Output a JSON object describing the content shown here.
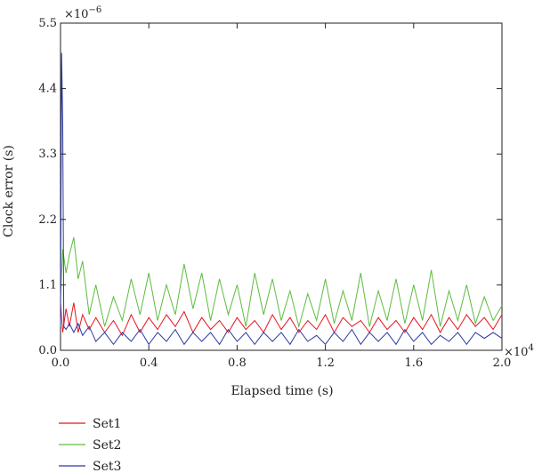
{
  "chart_data": {
    "type": "line",
    "xlabel": "Elapsed time (s)",
    "ylabel": "Clock error (s)",
    "x_multiplier_label": "×10",
    "x_multiplier_exp": "4",
    "y_multiplier_label": "×10",
    "y_multiplier_exp": "−6",
    "xlim": [
      0,
      20000
    ],
    "ylim": [
      0,
      5.5e-06
    ],
    "x_ticks": [
      0,
      4000,
      8000,
      12000,
      16000,
      20000
    ],
    "x_tick_labels": [
      "0.0",
      "0.4",
      "0.8",
      "1.2",
      "1.6",
      "2.0"
    ],
    "y_ticks": [
      0,
      1.1e-06,
      2.2e-06,
      3.3e-06,
      4.4e-06,
      5.5e-06
    ],
    "y_tick_labels": [
      "0.0",
      "1.1",
      "2.2",
      "3.3",
      "4.4",
      "5.5"
    ],
    "grid": false,
    "legend_position": "bottom-left",
    "series": [
      {
        "name": "Set1",
        "color": "#e8141e",
        "x": [
          0,
          100,
          250,
          400,
          600,
          800,
          1000,
          1300,
          1600,
          2000,
          2400,
          2800,
          3200,
          3600,
          4000,
          4400,
          4800,
          5200,
          5600,
          6000,
          6400,
          6800,
          7200,
          7600,
          8000,
          8400,
          8800,
          9200,
          9600,
          10000,
          10400,
          10800,
          11200,
          11600,
          12000,
          12400,
          12800,
          13200,
          13600,
          14000,
          14400,
          14800,
          15200,
          15600,
          16000,
          16400,
          16800,
          17200,
          17600,
          18000,
          18400,
          18800,
          19200,
          19600,
          20000
        ],
        "y": [
          8e-07,
          3e-07,
          7e-07,
          4e-07,
          8e-07,
          3e-07,
          6e-07,
          3.5e-07,
          5.5e-07,
          3e-07,
          5e-07,
          2.5e-07,
          6e-07,
          3e-07,
          5.5e-07,
          3.5e-07,
          6e-07,
          4e-07,
          6.5e-07,
          3e-07,
          5.5e-07,
          3.5e-07,
          5e-07,
          3e-07,
          5.5e-07,
          3.5e-07,
          5e-07,
          3e-07,
          6e-07,
          3.5e-07,
          5.5e-07,
          3e-07,
          5e-07,
          3.5e-07,
          6e-07,
          3e-07,
          5.5e-07,
          4e-07,
          5e-07,
          3e-07,
          5.5e-07,
          3.5e-07,
          5e-07,
          3e-07,
          5.5e-07,
          3.5e-07,
          6e-07,
          3e-07,
          5.5e-07,
          3.5e-07,
          6e-07,
          4e-07,
          5.5e-07,
          3.5e-07,
          6e-07
        ]
      },
      {
        "name": "Set2",
        "color": "#5dbb3f",
        "x": [
          0,
          100,
          250,
          400,
          600,
          800,
          1000,
          1300,
          1600,
          2000,
          2400,
          2800,
          3200,
          3600,
          4000,
          4400,
          4800,
          5200,
          5600,
          6000,
          6400,
          6800,
          7200,
          7600,
          8000,
          8400,
          8800,
          9200,
          9600,
          10000,
          10400,
          10800,
          11200,
          11600,
          12000,
          12400,
          12800,
          13200,
          13600,
          14000,
          14400,
          14800,
          15200,
          15600,
          16000,
          16400,
          16800,
          17200,
          17600,
          18000,
          18400,
          18800,
          19200,
          19600,
          20000
        ],
        "y": [
          9e-07,
          1.7e-06,
          1.3e-06,
          1.6e-06,
          1.9e-06,
          1.2e-06,
          1.5e-06,
          6e-07,
          1.1e-06,
          4e-07,
          9e-07,
          5e-07,
          1.2e-06,
          6e-07,
          1.3e-06,
          5e-07,
          1.1e-06,
          6e-07,
          1.45e-06,
          7e-07,
          1.3e-06,
          5e-07,
          1.2e-06,
          6e-07,
          1.1e-06,
          4e-07,
          1.3e-06,
          6e-07,
          1.2e-06,
          5e-07,
          1e-06,
          4e-07,
          9.5e-07,
          5e-07,
          1.2e-06,
          4.5e-07,
          1e-06,
          5e-07,
          1.3e-06,
          4e-07,
          1e-06,
          5e-07,
          1.2e-06,
          4.5e-07,
          1.1e-06,
          5e-07,
          1.35e-06,
          4e-07,
          1e-06,
          5e-07,
          1.1e-06,
          4.5e-07,
          9e-07,
          5e-07,
          7.5e-07
        ]
      },
      {
        "name": "Set3",
        "color": "#2b3aa3",
        "x": [
          0,
          50,
          100,
          150,
          250,
          400,
          600,
          800,
          1000,
          1300,
          1600,
          2000,
          2400,
          2800,
          3200,
          3600,
          4000,
          4400,
          4800,
          5200,
          5600,
          6000,
          6400,
          6800,
          7200,
          7600,
          8000,
          8400,
          8800,
          9200,
          9600,
          10000,
          10400,
          10800,
          11200,
          11600,
          12000,
          12400,
          12800,
          13200,
          13600,
          14000,
          14400,
          14800,
          15200,
          15600,
          16000,
          16400,
          16800,
          17200,
          17600,
          18000,
          18400,
          18800,
          19200,
          19600,
          20000
        ],
        "y": [
          4e-07,
          5e-06,
          3.8e-06,
          4e-07,
          3.5e-07,
          4.5e-07,
          3e-07,
          4.5e-07,
          2.5e-07,
          4e-07,
          1.5e-07,
          3e-07,
          1e-07,
          3e-07,
          1.5e-07,
          3.5e-07,
          1e-07,
          3e-07,
          1.5e-07,
          3.5e-07,
          1e-07,
          3e-07,
          1.5e-07,
          3e-07,
          1e-07,
          3.5e-07,
          1.5e-07,
          3e-07,
          1e-07,
          3e-07,
          1.5e-07,
          3e-07,
          1e-07,
          3.5e-07,
          1.5e-07,
          2.5e-07,
          1e-07,
          3e-07,
          1.5e-07,
          3.5e-07,
          1e-07,
          3e-07,
          1.5e-07,
          3e-07,
          1e-07,
          3.5e-07,
          1.5e-07,
          3e-07,
          1e-07,
          2.5e-07,
          1.5e-07,
          3e-07,
          1e-07,
          3e-07,
          2e-07,
          3e-07,
          2e-07
        ]
      }
    ]
  }
}
